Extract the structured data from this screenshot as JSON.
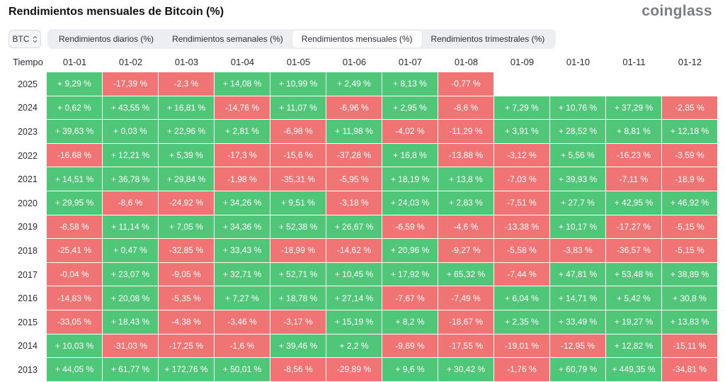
{
  "title": "Rendimientos mensuales de Bitcoin (%)",
  "logo": "coinglass",
  "asset_select": "BTC",
  "tabs": [
    {
      "label": "Rendimientos diarios (%)",
      "active": false
    },
    {
      "label": "Rendimientos semanales (%)",
      "active": false
    },
    {
      "label": "Rendimientos mensuales (%)",
      "active": true
    },
    {
      "label": "Rendimientos trimestrales (%)",
      "active": false
    }
  ],
  "colors": {
    "positive": "#50c679",
    "negative": "#f07474"
  },
  "chart_data": {
    "type": "heatmap",
    "row_header": "Tiempo",
    "columns": [
      "01-01",
      "01-02",
      "01-03",
      "01-04",
      "01-05",
      "01-06",
      "01-07",
      "01-08",
      "01-09",
      "01-10",
      "01-11",
      "01-12"
    ],
    "rows": [
      {
        "year": "2025",
        "values": [
          "+ 9,29 %",
          "-17,39 %",
          "-2,3 %",
          "+ 14,08 %",
          "+ 10,99 %",
          "+ 2,49 %",
          "+ 8,13 %",
          "-0,77 %",
          "",
          "",
          "",
          ""
        ]
      },
      {
        "year": "2024",
        "values": [
          "+ 0,62 %",
          "+ 43,55 %",
          "+ 16,81 %",
          "-14,76 %",
          "+ 11,07 %",
          "-6,96 %",
          "+ 2,95 %",
          "-8,6 %",
          "+ 7,29 %",
          "+ 10,76 %",
          "+ 37,29 %",
          "-2,85 %"
        ]
      },
      {
        "year": "2023",
        "values": [
          "+ 39,63 %",
          "+ 0,03 %",
          "+ 22,96 %",
          "+ 2,81 %",
          "-6,98 %",
          "+ 11,98 %",
          "-4,02 %",
          "-11,29 %",
          "+ 3,91 %",
          "+ 28,52 %",
          "+ 8,81 %",
          "+ 12,18 %"
        ]
      },
      {
        "year": "2022",
        "values": [
          "-16,68 %",
          "+ 12,21 %",
          "+ 5,39 %",
          "-17,3 %",
          "-15,6 %",
          "-37,28 %",
          "+ 16,8 %",
          "-13,88 %",
          "-3,12 %",
          "+ 5,56 %",
          "-16,23 %",
          "-3,59 %"
        ]
      },
      {
        "year": "2021",
        "values": [
          "+ 14,51 %",
          "+ 36,78 %",
          "+ 29,84 %",
          "-1,98 %",
          "-35,31 %",
          "-5,95 %",
          "+ 18,19 %",
          "+ 13,8 %",
          "-7,03 %",
          "+ 39,93 %",
          "-7,11 %",
          "-18,9 %"
        ]
      },
      {
        "year": "2020",
        "values": [
          "+ 29,95 %",
          "-8,6 %",
          "-24,92 %",
          "+ 34,26 %",
          "+ 9,51 %",
          "-3,18 %",
          "+ 24,03 %",
          "+ 2,83 %",
          "-7,51 %",
          "+ 27,7 %",
          "+ 42,95 %",
          "+ 46,92 %"
        ]
      },
      {
        "year": "2019",
        "values": [
          "-8,58 %",
          "+ 11,14 %",
          "+ 7,05 %",
          "+ 34,36 %",
          "+ 52,38 %",
          "+ 26,67 %",
          "-6,59 %",
          "-4,6 %",
          "-13,38 %",
          "+ 10,17 %",
          "-17,27 %",
          "-5,15 %"
        ]
      },
      {
        "year": "2018",
        "values": [
          "-25,41 %",
          "+ 0,47 %",
          "-32,85 %",
          "+ 33,43 %",
          "-18,99 %",
          "-14,62 %",
          "+ 20,96 %",
          "-9,27 %",
          "-5,58 %",
          "-3,83 %",
          "-36,57 %",
          "-5,15 %"
        ]
      },
      {
        "year": "2017",
        "values": [
          "-0,04 %",
          "+ 23,07 %",
          "-9,05 %",
          "+ 32,71 %",
          "+ 52,71 %",
          "+ 10,45 %",
          "+ 17,92 %",
          "+ 65,32 %",
          "-7,44 %",
          "+ 47,81 %",
          "+ 53,48 %",
          "+ 38,89 %"
        ]
      },
      {
        "year": "2016",
        "values": [
          "-14,83 %",
          "+ 20,08 %",
          "-5,35 %",
          "+ 7,27 %",
          "+ 18,78 %",
          "+ 27,14 %",
          "-7,67 %",
          "-7,49 %",
          "+ 6,04 %",
          "+ 14,71 %",
          "+ 5,42 %",
          "+ 30,8 %"
        ]
      },
      {
        "year": "2015",
        "values": [
          "-33,05 %",
          "+ 18,43 %",
          "-4,38 %",
          "-3,46 %",
          "-3,17 %",
          "+ 15,19 %",
          "+ 8,2 %",
          "-18,67 %",
          "+ 2,35 %",
          "+ 33,49 %",
          "+ 19,27 %",
          "+ 13,83 %"
        ]
      },
      {
        "year": "2014",
        "values": [
          "+ 10,03 %",
          "-31,03 %",
          "-17,25 %",
          "-1,6 %",
          "+ 39,46 %",
          "+ 2,2 %",
          "-9,69 %",
          "-17,55 %",
          "-19,01 %",
          "-12,95 %",
          "+ 12,82 %",
          "-15,11 %"
        ]
      },
      {
        "year": "2013",
        "values": [
          "+ 44,05 %",
          "+ 61,77 %",
          "+ 172,76 %",
          "+ 50,01 %",
          "-8,56 %",
          "-29,89 %",
          "+ 9,6 %",
          "+ 30,42 %",
          "-1,76 %",
          "+ 60,79 %",
          "+ 449,35 %",
          "-34,81 %"
        ]
      }
    ]
  }
}
